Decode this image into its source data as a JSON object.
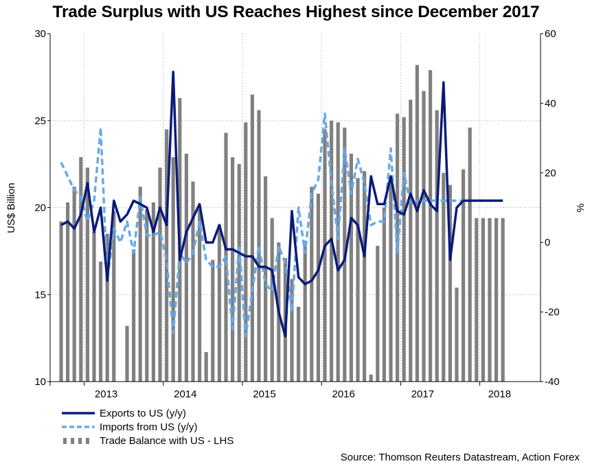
{
  "chart_data": {
    "type": "bar+line",
    "title": "Trade Surplus with US Reaches Highest since December 2017",
    "ylabel_left": "US$ Billion",
    "ylabel_right": "%",
    "ylim_left": [
      10,
      30
    ],
    "ylim_right": [
      -40,
      60
    ],
    "yticks_left": [
      "10",
      "15",
      "20",
      "25",
      "30"
    ],
    "yticks_right": [
      "-40",
      "-20",
      "0",
      "20",
      "40",
      "60"
    ],
    "x_labels": [
      "2013",
      "2014",
      "2015",
      "2016",
      "2017",
      "2018"
    ],
    "grid": true,
    "months": [
      "2012-09",
      "2012-10",
      "2012-11",
      "2012-12",
      "2013-01",
      "2013-02",
      "2013-03",
      "2013-04",
      "2013-05",
      "2013-06",
      "2013-07",
      "2013-08",
      "2013-09",
      "2013-10",
      "2013-11",
      "2013-12",
      "2014-01",
      "2014-02",
      "2014-03",
      "2014-04",
      "2014-05",
      "2014-06",
      "2014-07",
      "2014-08",
      "2014-09",
      "2014-10",
      "2014-11",
      "2014-12",
      "2015-01",
      "2015-02",
      "2015-03",
      "2015-04",
      "2015-05",
      "2015-06",
      "2015-07",
      "2015-08",
      "2015-09",
      "2015-10",
      "2015-11",
      "2015-12",
      "2016-01",
      "2016-02",
      "2016-03",
      "2016-04",
      "2016-05",
      "2016-06",
      "2016-07",
      "2016-08",
      "2016-09",
      "2016-10",
      "2016-11",
      "2016-12",
      "2017-01",
      "2017-02",
      "2017-03",
      "2017-04",
      "2017-05",
      "2017-06",
      "2017-07",
      "2017-08",
      "2017-09",
      "2017-10",
      "2017-11",
      "2017-12",
      "2018-01",
      "2018-02",
      "2018-03",
      "2018-04"
    ],
    "series": [
      {
        "name": "Trade Balance with US - LHS",
        "kind": "bar",
        "axis": "left",
        "color": "#808080",
        "values": [
          19.2,
          20.3,
          21.2,
          22.9,
          22.3,
          18.6,
          16.9,
          18.5,
          19.8,
          10.0,
          13.2,
          17.6,
          21.2,
          19.9,
          20.3,
          22.3,
          24.5,
          22.9,
          26.3,
          23.1,
          21.5,
          19.9,
          11.7,
          17.0,
          19.0,
          24.3,
          22.9,
          22.5,
          24.9,
          26.5,
          25.6,
          21.8,
          19.4,
          18.0,
          17.1,
          15.9,
          14.3,
          18.1,
          21.2,
          20.8,
          24.5,
          25.0,
          24.9,
          24.6,
          23.1,
          21.7,
          22.1,
          10.4,
          17.8,
          20.0,
          21.5,
          25.4,
          25.2,
          26.2,
          28.2,
          26.7,
          27.9,
          25.6,
          22.0,
          21.3,
          15.4,
          22.2,
          24.6,
          19.4,
          19.4,
          19.4,
          19.4,
          19.4
        ]
      },
      {
        "name": "Exports to US (y/y)",
        "kind": "line",
        "axis": "right",
        "color": "#0a1a7a",
        "values": [
          5,
          6,
          4,
          8,
          17,
          3,
          10,
          -11,
          12,
          6,
          8,
          12,
          11,
          10,
          3,
          10,
          5,
          49,
          -5,
          3,
          7,
          11,
          0,
          0,
          5,
          -2,
          -2,
          -3,
          -4,
          -4,
          -7,
          -7,
          -8,
          -20,
          -27,
          9,
          -10,
          -12,
          -11,
          -8,
          -1,
          1,
          -8,
          -5,
          7,
          5,
          -4,
          19,
          11,
          11,
          19,
          9,
          8,
          14,
          9,
          15,
          11,
          9,
          46,
          -5,
          10,
          12,
          12,
          12,
          12,
          12,
          12,
          12
        ]
      },
      {
        "name": "Imports from US (y/y)",
        "kind": "line",
        "axis": "right",
        "color": "#6aa9e6",
        "values": [
          23,
          19,
          15,
          13,
          6,
          12,
          33,
          -11,
          4,
          0,
          6,
          -3,
          13,
          2,
          2,
          3,
          -5,
          -26,
          -3,
          -6,
          -3,
          6,
          -5,
          -7,
          -7,
          -4,
          -25,
          -1,
          -27,
          -14,
          -1,
          -12,
          -14,
          -1,
          -6,
          -20,
          10,
          -3,
          14,
          18,
          37,
          17,
          1,
          27,
          14,
          24,
          17,
          5,
          6,
          6,
          27,
          -3,
          20,
          11,
          12,
          12,
          12,
          12,
          12,
          12,
          12,
          12,
          12,
          12,
          12,
          12,
          12,
          12
        ]
      }
    ]
  },
  "legend": {
    "exports_label": "Exports to US (y/y)",
    "imports_label": "Imports from US (y/y)",
    "balance_label": "Trade Balance with US - LHS"
  },
  "source": "Source: Thomson Reuters Datastream, Action Forex"
}
